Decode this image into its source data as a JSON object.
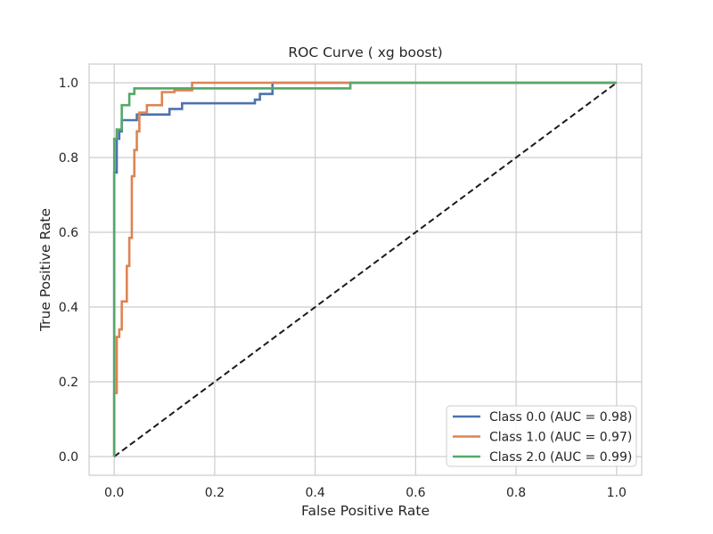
{
  "chart_data": {
    "type": "line",
    "title": "ROC Curve (  xg boost)",
    "xlabel": "False Positive Rate",
    "ylabel": "True Positive Rate",
    "xlim": [
      -0.05,
      1.05
    ],
    "ylim": [
      -0.05,
      1.05
    ],
    "xticks": [
      0.0,
      0.2,
      0.4,
      0.6,
      0.8,
      1.0
    ],
    "yticks": [
      0.0,
      0.2,
      0.4,
      0.6,
      0.8,
      1.0
    ],
    "xtick_labels": [
      "0.0",
      "0.2",
      "0.4",
      "0.6",
      "0.8",
      "1.0"
    ],
    "ytick_labels": [
      "0.0",
      "0.2",
      "0.4",
      "0.6",
      "0.8",
      "1.0"
    ],
    "grid": true,
    "legend_position": "lower-right",
    "series": [
      {
        "name": "Class 0.0 (AUC = 0.98)",
        "color": "#4c72b0",
        "x": [
          0.0,
          0.0,
          0.005,
          0.005,
          0.01,
          0.01,
          0.015,
          0.015,
          0.045,
          0.045,
          0.11,
          0.11,
          0.135,
          0.135,
          0.28,
          0.28,
          0.29,
          0.29,
          0.315,
          0.315,
          1.0
        ],
        "y": [
          0.0,
          0.76,
          0.76,
          0.85,
          0.85,
          0.87,
          0.87,
          0.9,
          0.9,
          0.915,
          0.915,
          0.93,
          0.93,
          0.945,
          0.945,
          0.955,
          0.955,
          0.97,
          0.97,
          1.0,
          1.0
        ]
      },
      {
        "name": "Class 1.0 (AUC = 0.97)",
        "color": "#dd8452",
        "x": [
          0.0,
          0.0,
          0.005,
          0.005,
          0.01,
          0.01,
          0.015,
          0.015,
          0.025,
          0.025,
          0.03,
          0.03,
          0.035,
          0.035,
          0.04,
          0.04,
          0.045,
          0.045,
          0.05,
          0.05,
          0.065,
          0.065,
          0.095,
          0.095,
          0.12,
          0.12,
          0.155,
          0.155,
          0.47,
          0.47,
          1.0
        ],
        "y": [
          0.0,
          0.17,
          0.17,
          0.32,
          0.32,
          0.34,
          0.34,
          0.415,
          0.415,
          0.51,
          0.51,
          0.585,
          0.585,
          0.75,
          0.75,
          0.82,
          0.82,
          0.87,
          0.87,
          0.92,
          0.92,
          0.94,
          0.94,
          0.975,
          0.975,
          0.98,
          0.98,
          1.0,
          1.0,
          1.0,
          1.0
        ]
      },
      {
        "name": "Class 2.0 (AUC = 0.99)",
        "color": "#55a868",
        "x": [
          0.0,
          0.0,
          0.005,
          0.005,
          0.015,
          0.015,
          0.03,
          0.03,
          0.04,
          0.04,
          0.47,
          0.47,
          1.0
        ],
        "y": [
          0.0,
          0.85,
          0.85,
          0.875,
          0.875,
          0.94,
          0.94,
          0.97,
          0.97,
          0.985,
          0.985,
          1.0,
          1.0
        ]
      }
    ],
    "reference_line": {
      "x": [
        0.0,
        1.0
      ],
      "y": [
        0.0,
        1.0
      ],
      "color": "#1a1a1a",
      "style": "dashed"
    }
  }
}
